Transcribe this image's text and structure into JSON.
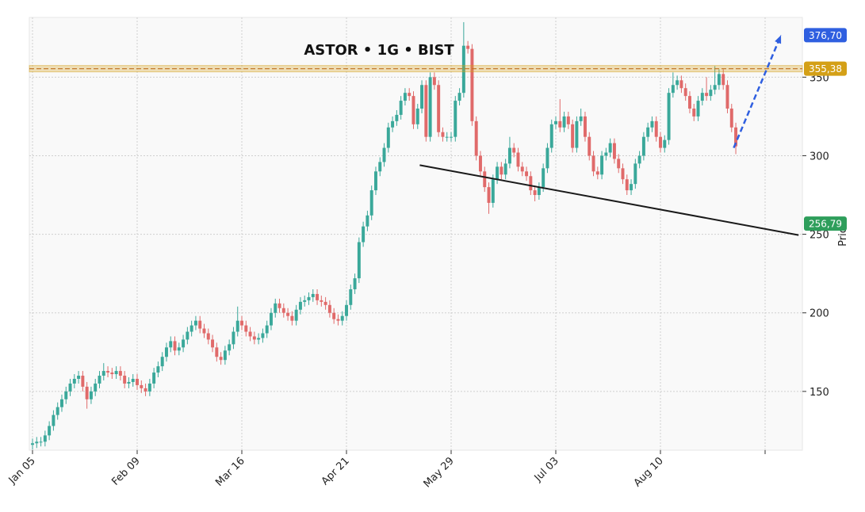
{
  "chart_data": {
    "type": "candlestick",
    "title": "ASTOR • 1G • BIST",
    "y_label": "Price",
    "xlim": [
      -0.76,
      183.9
    ],
    "xticks": [
      {
        "value": 0,
        "label": "Jan 05"
      },
      {
        "value": 25,
        "label": "Feb 09"
      },
      {
        "value": 50,
        "label": "Mar 16"
      },
      {
        "value": 75,
        "label": "Apr 21"
      },
      {
        "value": 100,
        "label": "May 29"
      },
      {
        "value": 125,
        "label": "Jul 03"
      },
      {
        "value": 150,
        "label": "Aug 10"
      },
      175
    ],
    "ylim": [
      112.6,
      388
    ],
    "yticks": [
      150,
      200,
      250,
      300,
      350
    ],
    "grid": true,
    "up_color": "#3aa89a",
    "down_color": "#e06a6a",
    "open": [
      116,
      117,
      118,
      118,
      122,
      128,
      135,
      140,
      145,
      150,
      155,
      158,
      160,
      153,
      145,
      150,
      155,
      160,
      163,
      162,
      161,
      163,
      160,
      155,
      156,
      158,
      154,
      152,
      150,
      155,
      162,
      166,
      172,
      178,
      182,
      176,
      178,
      183,
      188,
      192,
      195,
      190,
      187,
      183,
      178,
      172,
      170,
      176,
      180,
      188,
      195,
      192,
      188,
      185,
      183,
      184,
      187,
      192,
      200,
      206,
      203,
      200,
      198,
      195,
      202,
      207,
      208,
      210,
      212,
      208,
      207,
      205,
      200,
      196,
      195,
      198,
      205,
      215,
      222,
      245,
      255,
      262,
      278,
      290,
      296,
      305,
      318,
      322,
      326,
      335,
      340,
      338,
      320,
      330,
      345,
      312,
      350,
      345,
      315,
      312,
      312,
      312,
      335,
      340,
      370,
      368,
      322,
      300,
      290,
      280,
      270,
      285,
      293,
      288,
      295,
      305,
      302,
      293,
      290,
      287,
      278,
      275,
      280,
      292,
      305,
      320,
      322,
      318,
      325,
      320,
      305,
      322,
      325,
      312,
      300,
      290,
      288,
      300,
      302,
      308,
      298,
      292,
      285,
      278,
      282,
      295,
      300,
      312,
      318,
      322,
      312,
      305,
      310,
      340,
      345,
      348,
      343,
      338,
      330,
      325,
      335,
      340,
      338,
      342,
      345,
      352,
      345,
      330,
      318
    ],
    "high": [
      120,
      121,
      121,
      125,
      131,
      138,
      143,
      148,
      153,
      158,
      161,
      163,
      163,
      156,
      153,
      158,
      163,
      168,
      166,
      165,
      166,
      166,
      163,
      159,
      161,
      161,
      157,
      155,
      158,
      165,
      169,
      175,
      181,
      185,
      185,
      181,
      186,
      191,
      195,
      198,
      198,
      193,
      190,
      186,
      181,
      175,
      179,
      183,
      191,
      204,
      198,
      195,
      191,
      188,
      187,
      190,
      195,
      203,
      209,
      209,
      206,
      203,
      201,
      205,
      210,
      211,
      213,
      215,
      215,
      211,
      210,
      208,
      203,
      199,
      201,
      208,
      218,
      225,
      248,
      258,
      265,
      281,
      293,
      299,
      308,
      321,
      325,
      329,
      338,
      343,
      343,
      341,
      333,
      348,
      348,
      353,
      353,
      348,
      318,
      315,
      315,
      338,
      343,
      385,
      373,
      371,
      325,
      303,
      293,
      283,
      288,
      296,
      296,
      298,
      312,
      308,
      305,
      296,
      293,
      290,
      281,
      283,
      295,
      308,
      323,
      325,
      336,
      328,
      328,
      323,
      325,
      330,
      328,
      315,
      303,
      293,
      303,
      305,
      311,
      311,
      301,
      295,
      288,
      285,
      298,
      303,
      315,
      321,
      325,
      325,
      315,
      313,
      343,
      353,
      351,
      351,
      346,
      341,
      333,
      338,
      343,
      350,
      345,
      357,
      355,
      355,
      348,
      333,
      321
    ],
    "low": [
      113,
      114,
      115,
      115,
      119,
      125,
      132,
      137,
      142,
      147,
      152,
      155,
      150,
      139,
      142,
      147,
      152,
      157,
      159,
      158,
      158,
      157,
      152,
      152,
      153,
      151,
      149,
      147,
      147,
      152,
      159,
      163,
      169,
      175,
      173,
      173,
      175,
      180,
      185,
      189,
      187,
      184,
      180,
      175,
      169,
      167,
      167,
      173,
      177,
      185,
      189,
      185,
      182,
      180,
      180,
      181,
      184,
      189,
      197,
      200,
      197,
      195,
      192,
      192,
      199,
      204,
      205,
      207,
      205,
      204,
      202,
      197,
      193,
      192,
      192,
      195,
      202,
      212,
      219,
      242,
      252,
      259,
      275,
      287,
      293,
      302,
      315,
      319,
      323,
      332,
      335,
      317,
      317,
      327,
      309,
      309,
      342,
      312,
      309,
      309,
      309,
      309,
      332,
      337,
      365,
      319,
      297,
      287,
      277,
      263,
      267,
      282,
      285,
      285,
      292,
      299,
      290,
      287,
      284,
      275,
      271,
      272,
      277,
      289,
      302,
      317,
      315,
      315,
      317,
      302,
      302,
      319,
      309,
      297,
      287,
      285,
      285,
      297,
      299,
      295,
      289,
      282,
      275,
      275,
      279,
      292,
      297,
      309,
      315,
      309,
      302,
      302,
      307,
      337,
      342,
      340,
      335,
      327,
      322,
      322,
      332,
      335,
      335,
      339,
      342,
      342,
      327,
      315,
      301
    ],
    "close": [
      117,
      118,
      118,
      122,
      128,
      135,
      140,
      145,
      150,
      155,
      158,
      160,
      153,
      145,
      150,
      155,
      160,
      163,
      162,
      161,
      163,
      160,
      155,
      156,
      158,
      154,
      152,
      150,
      155,
      162,
      166,
      172,
      178,
      182,
      176,
      178,
      183,
      188,
      192,
      195,
      190,
      187,
      183,
      178,
      172,
      170,
      176,
      180,
      188,
      195,
      192,
      188,
      185,
      183,
      184,
      187,
      192,
      200,
      206,
      203,
      200,
      198,
      195,
      202,
      207,
      208,
      210,
      212,
      208,
      207,
      205,
      200,
      196,
      195,
      198,
      205,
      215,
      222,
      245,
      255,
      262,
      278,
      290,
      296,
      305,
      318,
      322,
      326,
      335,
      340,
      338,
      320,
      330,
      345,
      312,
      350,
      345,
      315,
      312,
      312,
      312,
      335,
      340,
      370,
      368,
      322,
      300,
      290,
      280,
      270,
      285,
      293,
      288,
      295,
      305,
      302,
      293,
      290,
      287,
      278,
      275,
      280,
      292,
      305,
      320,
      322,
      318,
      325,
      320,
      305,
      322,
      325,
      312,
      300,
      290,
      288,
      300,
      302,
      308,
      298,
      292,
      285,
      278,
      282,
      295,
      300,
      312,
      318,
      322,
      312,
      305,
      310,
      340,
      345,
      348,
      343,
      338,
      330,
      325,
      335,
      340,
      338,
      342,
      345,
      352,
      345,
      330,
      318,
      306
    ],
    "resistance": {
      "value": 355.38,
      "label": "355,38",
      "color": "#d4a017"
    },
    "trendline": {
      "x": [
        92.5,
        183
      ],
      "y": [
        294,
        249.5
      ],
      "value": 256.79,
      "label": "256,79",
      "color": "#1a1a1a",
      "tag_color": "#2e9e5b"
    },
    "target": {
      "x": [
        167.5,
        178.8
      ],
      "y": [
        305,
        376.7
      ],
      "value": 376.7,
      "label": "376,70",
      "color": "#2f5fe0"
    }
  }
}
